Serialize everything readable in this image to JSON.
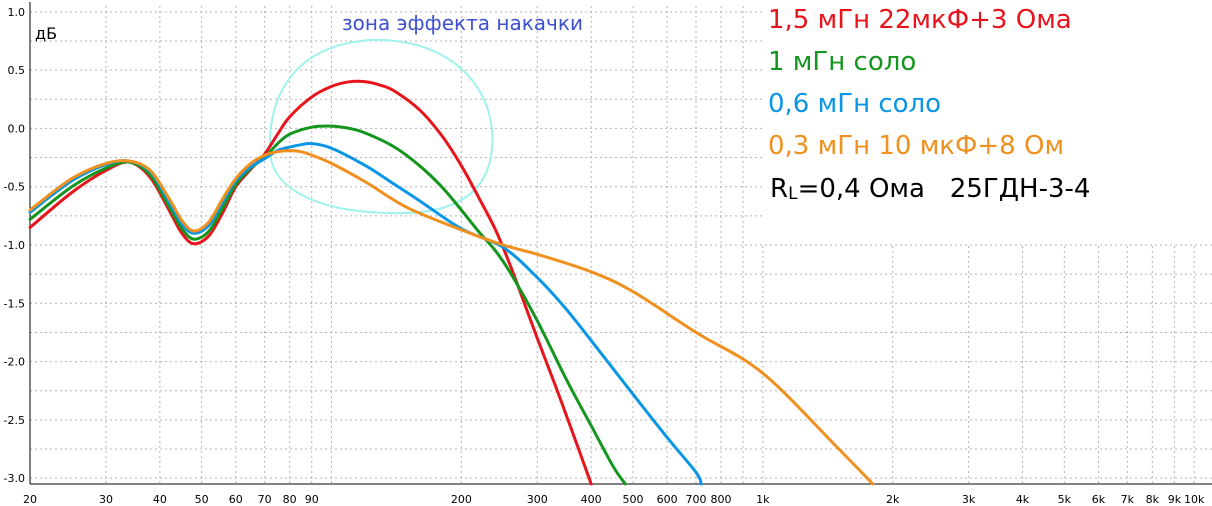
{
  "colors": {
    "red": "#e8141c",
    "green": "#14961e",
    "blue": "#0a96e6",
    "orange": "#f0901e",
    "annotation_text": "#3c50d2",
    "annotation_outline": "#9ff2ee",
    "grid": "#b4b4b4"
  },
  "chart_data": {
    "type": "line",
    "ylabel": "дБ",
    "x_scale": "log",
    "xlim": [
      20,
      11000
    ],
    "ylim": [
      -3.05,
      1.05
    ],
    "grid": true,
    "legend_position": "top-right",
    "x_ticks": [
      "20",
      "30",
      "40",
      "50",
      "60",
      "70",
      "80",
      "90",
      "200",
      "300",
      "400",
      "500",
      "600",
      "700",
      "800",
      "1k",
      "2k",
      "3k",
      "4k",
      "5k",
      "6k",
      "7k",
      "8k",
      "9k",
      "10k"
    ],
    "y_ticks": [
      "1.0",
      "0.5",
      "0.0",
      "-0.5",
      "-1.0",
      "-1.5",
      "-2.0",
      "-2.5",
      "-3.0"
    ],
    "annotation": "зона эффекта накачки",
    "legend": [
      "1,5 мГн 22мкФ+3 Ома",
      "1 мГн соло",
      "0,6 мГн соло",
      "0,3 мГн 10 мкФ+8 Ом"
    ],
    "load_label": {
      "main": "R",
      "sub": "L",
      "rest": "=0,4 Ома   25ГДН-3-4"
    },
    "series": [
      {
        "name": "1,5 мГн 22мкФ+3 Ома",
        "color": "red",
        "x": [
          20,
          25,
          30,
          34,
          38,
          42,
          45,
          48,
          52,
          56,
          60,
          65,
          70,
          75,
          80,
          90,
          100,
          110,
          120,
          130,
          140,
          160,
          180,
          200,
          220,
          240,
          260,
          280,
          300,
          330,
          360,
          400
        ],
        "y": [
          -0.85,
          -0.55,
          -0.36,
          -0.29,
          -0.42,
          -0.7,
          -0.9,
          -0.99,
          -0.92,
          -0.72,
          -0.5,
          -0.35,
          -0.22,
          -0.05,
          0.1,
          0.27,
          0.36,
          0.4,
          0.4,
          0.37,
          0.32,
          0.16,
          -0.06,
          -0.32,
          -0.6,
          -0.87,
          -1.18,
          -1.5,
          -1.8,
          -2.2,
          -2.58,
          -3.05
        ]
      },
      {
        "name": "1 мГн соло",
        "color": "green",
        "x": [
          20,
          25,
          30,
          34,
          38,
          42,
          45,
          48,
          52,
          56,
          60,
          65,
          70,
          75,
          80,
          90,
          100,
          110,
          120,
          140,
          160,
          180,
          200,
          220,
          240,
          260,
          300,
          350,
          400,
          450,
          480
        ],
        "y": [
          -0.78,
          -0.5,
          -0.34,
          -0.29,
          -0.4,
          -0.67,
          -0.86,
          -0.95,
          -0.88,
          -0.68,
          -0.48,
          -0.34,
          -0.25,
          -0.13,
          -0.05,
          0.01,
          0.02,
          0.0,
          -0.04,
          -0.16,
          -0.32,
          -0.5,
          -0.7,
          -0.89,
          -1.05,
          -1.24,
          -1.65,
          -2.15,
          -2.55,
          -2.9,
          -3.05
        ]
      },
      {
        "name": "0,6 мГн соло",
        "color": "blue",
        "x": [
          20,
          25,
          30,
          34,
          38,
          42,
          45,
          48,
          52,
          56,
          60,
          65,
          70,
          75,
          80,
          85,
          90,
          100,
          120,
          140,
          160,
          200,
          250,
          300,
          350,
          400,
          500,
          600,
          700,
          720
        ],
        "y": [
          -0.72,
          -0.45,
          -0.31,
          -0.28,
          -0.37,
          -0.63,
          -0.82,
          -0.9,
          -0.83,
          -0.63,
          -0.45,
          -0.33,
          -0.26,
          -0.19,
          -0.16,
          -0.14,
          -0.13,
          -0.17,
          -0.32,
          -0.48,
          -0.62,
          -0.86,
          -1.02,
          -1.28,
          -1.55,
          -1.82,
          -2.28,
          -2.65,
          -2.95,
          -3.05
        ]
      },
      {
        "name": "0,3 мГн 10 мкФ+8 Ом",
        "color": "orange",
        "x": [
          20,
          25,
          30,
          34,
          38,
          42,
          45,
          48,
          52,
          56,
          60,
          65,
          70,
          75,
          80,
          85,
          90,
          100,
          120,
          150,
          200,
          250,
          300,
          400,
          500,
          700,
          1000,
          1500,
          1800
        ],
        "y": [
          -0.7,
          -0.43,
          -0.3,
          -0.28,
          -0.36,
          -0.6,
          -0.79,
          -0.88,
          -0.8,
          -0.6,
          -0.43,
          -0.3,
          -0.23,
          -0.2,
          -0.19,
          -0.2,
          -0.23,
          -0.3,
          -0.46,
          -0.68,
          -0.87,
          -1.0,
          -1.08,
          -1.23,
          -1.4,
          -1.75,
          -2.1,
          -2.75,
          -3.05
        ]
      }
    ]
  }
}
